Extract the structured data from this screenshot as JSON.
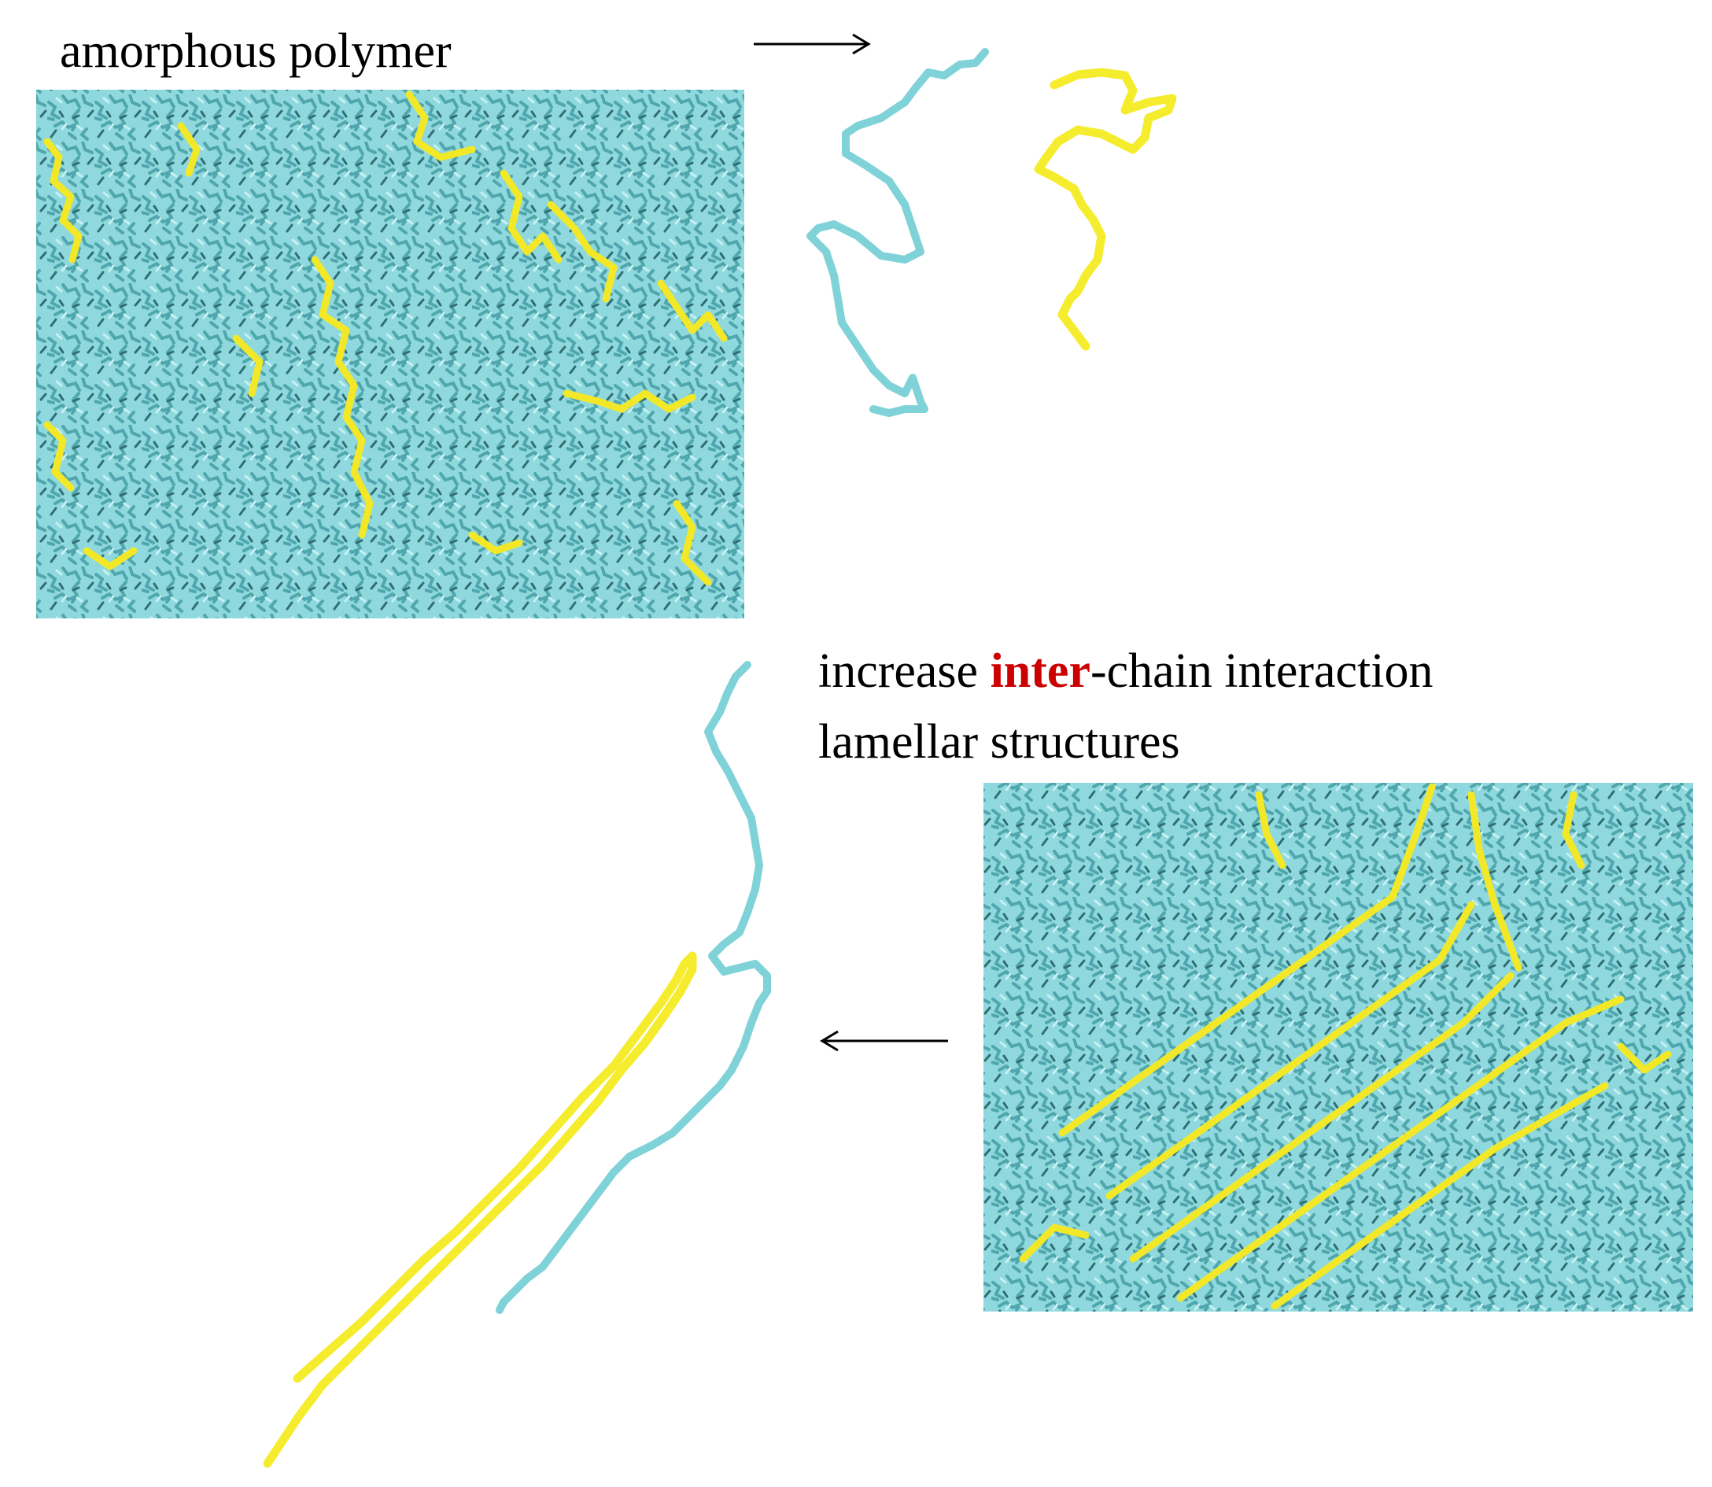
{
  "labels": {
    "title_top": "amorphous polymer",
    "line1_prefix": "increase ",
    "line1_highlight": "inter",
    "line1_suffix": "-chain interaction",
    "line2": "lamellar structures"
  },
  "colors": {
    "chain_cyan": "#7fd3d8",
    "chain_cyan_dark": "#2f6f74",
    "chain_yellow": "#f5ec2e",
    "highlight_red": "#cc0000",
    "arrow": "#000000"
  }
}
